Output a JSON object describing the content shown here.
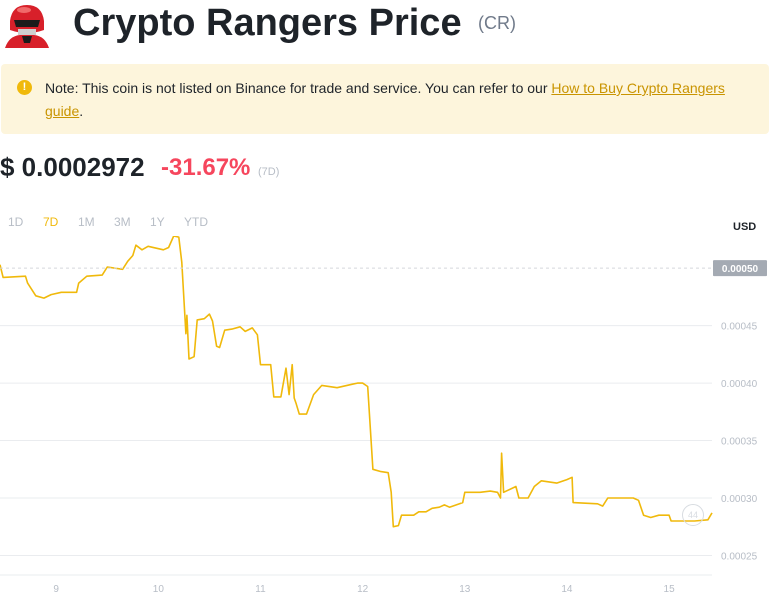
{
  "header": {
    "title": "Crypto Rangers Price",
    "symbol": "(CR)"
  },
  "notice": {
    "text": "Note: This coin is not listed on Binance for trade and service. You can refer to our ",
    "link_text": "How to Buy Crypto Rangers guide",
    "suffix": "."
  },
  "price": {
    "value": "$ 0.0002972",
    "change": "-31.67%",
    "period": "(7D)"
  },
  "ranges": [
    "1D",
    "7D",
    "1M",
    "3M",
    "1Y",
    "YTD"
  ],
  "active_range": "7D",
  "currency": "USD",
  "current_price_label": "0.00050",
  "colors": {
    "accent": "#f0b90b",
    "negative": "#f6465d",
    "notice_bg": "#fdf5dc",
    "grid": "#eaecef",
    "axis_text": "#b7bdc6"
  },
  "chart_data": {
    "type": "line",
    "title": "",
    "xlabel": "",
    "ylabel": "",
    "x_ticks": [
      "9",
      "10",
      "11",
      "12",
      "13",
      "14",
      "15"
    ],
    "y_ticks": [
      "0.00045",
      "0.00040",
      "0.00035",
      "0.00030",
      "0.00025"
    ],
    "xlim": [
      8.45,
      15.42
    ],
    "ylim": [
      0.000233,
      0.000528
    ],
    "grid": true,
    "series": [
      {
        "name": "",
        "points": [
          [
            8.45,
            0.000503
          ],
          [
            8.48,
            0.000492
          ],
          [
            8.7,
            0.000493
          ],
          [
            8.72,
            0.000487
          ],
          [
            8.8,
            0.000476
          ],
          [
            8.88,
            0.000474
          ],
          [
            8.95,
            0.000477
          ],
          [
            9.05,
            0.000479
          ],
          [
            9.2,
            0.000479
          ],
          [
            9.22,
            0.000487
          ],
          [
            9.3,
            0.000493
          ],
          [
            9.45,
            0.000494
          ],
          [
            9.5,
            0.000501
          ],
          [
            9.65,
            0.000499
          ],
          [
            9.7,
            0.000506
          ],
          [
            9.75,
            0.000511
          ],
          [
            9.78,
            0.00052
          ],
          [
            9.84,
            0.000516
          ],
          [
            9.9,
            0.000519
          ],
          [
            10.05,
            0.000516
          ],
          [
            10.1,
            0.000518
          ],
          [
            10.15,
            0.000528
          ],
          [
            10.2,
            0.000527
          ],
          [
            10.23,
            0.000505
          ],
          [
            10.27,
            0.000443
          ],
          [
            10.28,
            0.000459
          ],
          [
            10.3,
            0.000421
          ],
          [
            10.35,
            0.000423
          ],
          [
            10.38,
            0.000455
          ],
          [
            10.45,
            0.000456
          ],
          [
            10.5,
            0.00046
          ],
          [
            10.53,
            0.000454
          ],
          [
            10.57,
            0.000432
          ],
          [
            10.6,
            0.000431
          ],
          [
            10.65,
            0.000446
          ],
          [
            10.72,
            0.000447
          ],
          [
            10.8,
            0.000449
          ],
          [
            10.85,
            0.000445
          ],
          [
            10.92,
            0.000448
          ],
          [
            10.97,
            0.000442
          ],
          [
            11.0,
            0.000416
          ],
          [
            11.1,
            0.000416
          ],
          [
            11.13,
            0.000388
          ],
          [
            11.2,
            0.000388
          ],
          [
            11.25,
            0.000413
          ],
          [
            11.28,
            0.00039
          ],
          [
            11.31,
            0.000416
          ],
          [
            11.33,
            0.000387
          ],
          [
            11.35,
            0.000382
          ],
          [
            11.38,
            0.000373
          ],
          [
            11.45,
            0.000373
          ],
          [
            11.52,
            0.00039
          ],
          [
            11.6,
            0.000398
          ],
          [
            11.75,
            0.000396
          ],
          [
            11.9,
            0.000399
          ],
          [
            11.95,
            0.0004
          ],
          [
            12.0,
            0.0004
          ],
          [
            12.05,
            0.000397
          ],
          [
            12.1,
            0.000325
          ],
          [
            12.18,
            0.000323
          ],
          [
            12.25,
            0.000322
          ],
          [
            12.28,
            0.000305
          ],
          [
            12.3,
            0.000275
          ],
          [
            12.35,
            0.000276
          ],
          [
            12.38,
            0.000285
          ],
          [
            12.5,
            0.000285
          ],
          [
            12.55,
            0.000288
          ],
          [
            12.62,
            0.000288
          ],
          [
            12.68,
            0.000291
          ],
          [
            12.75,
            0.000292
          ],
          [
            12.8,
            0.000294
          ],
          [
            12.85,
            0.000292
          ],
          [
            12.98,
            0.000296
          ],
          [
            13.0,
            0.000305
          ],
          [
            13.15,
            0.000305
          ],
          [
            13.25,
            0.000306
          ],
          [
            13.32,
            0.000305
          ],
          [
            13.35,
            0.0003
          ],
          [
            13.36,
            0.000339
          ],
          [
            13.38,
            0.000305
          ],
          [
            13.5,
            0.00031
          ],
          [
            13.53,
            0.0003
          ],
          [
            13.62,
            0.0003
          ],
          [
            13.68,
            0.00031
          ],
          [
            13.75,
            0.000315
          ],
          [
            13.9,
            0.000313
          ],
          [
            14.0,
            0.000316
          ],
          [
            14.05,
            0.000318
          ],
          [
            14.06,
            0.000296
          ],
          [
            14.3,
            0.000295
          ],
          [
            14.35,
            0.000293
          ],
          [
            14.4,
            0.0003
          ],
          [
            14.55,
            0.0003
          ],
          [
            14.65,
            0.0003
          ],
          [
            14.7,
            0.000298
          ],
          [
            14.75,
            0.000285
          ],
          [
            14.82,
            0.000283
          ],
          [
            14.9,
            0.000285
          ],
          [
            15.0,
            0.000285
          ],
          [
            15.02,
            0.00028
          ],
          [
            15.25,
            0.00028
          ],
          [
            15.38,
            0.000281
          ],
          [
            15.42,
            0.000287
          ]
        ]
      }
    ]
  }
}
